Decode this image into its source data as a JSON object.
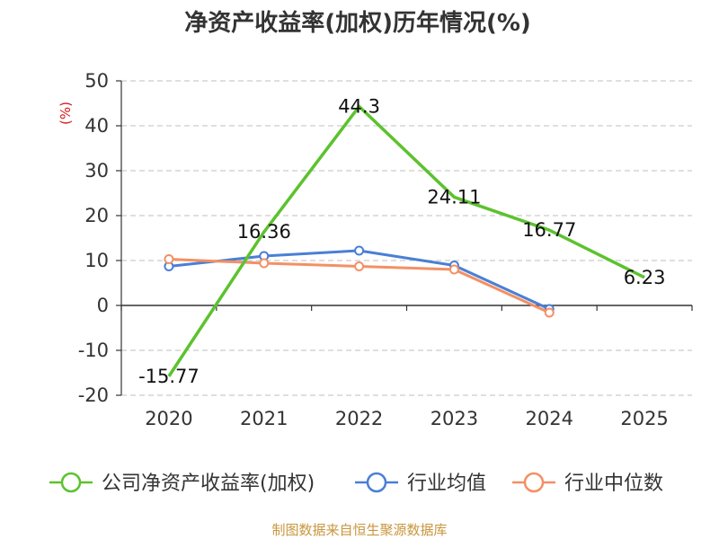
{
  "chart_data": {
    "type": "line",
    "title": "净资产收益率(加权)历年情况(%)",
    "ylabel": "(%)",
    "xlabel": "",
    "categories": [
      "2020",
      "2021",
      "2022",
      "2023",
      "2024",
      "2025"
    ],
    "ylim": [
      -20,
      50
    ],
    "yticks": [
      50,
      40,
      30,
      20,
      10,
      0,
      -10,
      -20
    ],
    "grid": true,
    "legend_position": "bottom",
    "series": [
      {
        "name": "公司净资产收益率(加权)",
        "color": "#5cc22e",
        "values": [
          -15.77,
          16.36,
          44.3,
          24.11,
          16.77,
          6.23
        ],
        "labels": [
          "-15.77",
          "16.36",
          "44.3",
          "24.11",
          "16.77",
          "6.23"
        ]
      },
      {
        "name": "行业均值",
        "color": "#4a7fd6",
        "values": [
          8.7,
          11.0,
          12.2,
          8.9,
          -0.8,
          null
        ]
      },
      {
        "name": "行业中位数",
        "color": "#f39064",
        "values": [
          10.3,
          9.4,
          8.7,
          8.0,
          -1.6,
          null
        ]
      }
    ],
    "source": "制图数据来自恒生聚源数据库"
  }
}
